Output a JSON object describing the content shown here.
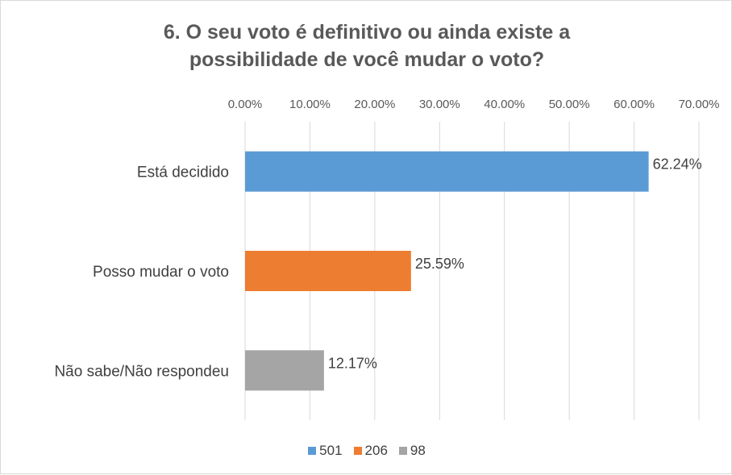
{
  "chart_data": {
    "type": "bar",
    "orientation": "horizontal",
    "title_lines": [
      "6. O seu voto é definitivo ou ainda existe a",
      "possibilidade de você mudar o voto?"
    ],
    "categories": [
      "Está decidido",
      "Posso mudar o voto",
      "Não sabe/Não respondeu"
    ],
    "values": [
      62.24,
      25.59,
      12.17
    ],
    "data_labels": [
      "62.24%",
      "25.59%",
      "12.17%"
    ],
    "colors": [
      "#5b9bd5",
      "#ed7d31",
      "#a5a5a5"
    ],
    "xlim": [
      0,
      70
    ],
    "x_ticks": [
      0,
      10,
      20,
      30,
      40,
      50,
      60,
      70
    ],
    "x_tick_labels": [
      "0.00%",
      "10.00%",
      "20.00%",
      "30.00%",
      "40.00%",
      "50.00%",
      "60.00%",
      "70.00%"
    ],
    "x_axis_position": "top",
    "grid": true,
    "legend_position": "bottom",
    "legend": [
      {
        "label": "501",
        "color": "#5b9bd5"
      },
      {
        "label": "206",
        "color": "#ed7d31"
      },
      {
        "label": "98",
        "color": "#a5a5a5"
      }
    ]
  }
}
